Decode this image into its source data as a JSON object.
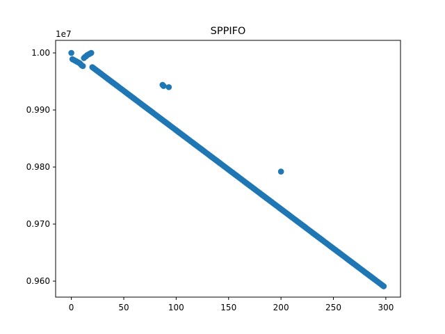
{
  "chart_data": {
    "type": "scatter",
    "title": "SPPIFO",
    "xlabel": "",
    "ylabel": "",
    "y_offset_label": "1e7",
    "xlim": [
      -15,
      314
    ],
    "ylim": [
      0.9572,
      1.0022
    ],
    "x_ticks": [
      0,
      50,
      100,
      150,
      200,
      250,
      300
    ],
    "x_tick_labels": [
      "0",
      "50",
      "100",
      "150",
      "200",
      "250",
      "300"
    ],
    "y_ticks": [
      0.96,
      0.97,
      0.98,
      0.99,
      1.0
    ],
    "y_tick_labels": [
      "0.960",
      "0.970",
      "0.980",
      "0.990",
      "1.00"
    ],
    "grid": false,
    "marker_color": "#1f77b4",
    "series": [
      {
        "main_trend": {
          "x_start": 20,
          "x_end": 298,
          "x_step": 1,
          "y_at_x_start": 0.9975,
          "y_at_x_end": 0.9591
        },
        "initial_cluster": [
          [
            0,
            1.0
          ],
          [
            1,
            0.9989
          ],
          [
            2,
            0.9988
          ],
          [
            3,
            0.9987
          ],
          [
            4,
            0.9986
          ],
          [
            5,
            0.9985
          ],
          [
            6,
            0.9984
          ],
          [
            7,
            0.9983
          ],
          [
            8,
            0.9982
          ],
          [
            9,
            0.998
          ],
          [
            10,
            0.9978
          ],
          [
            11,
            0.9977
          ],
          [
            12,
            0.9991
          ],
          [
            13,
            0.9993
          ],
          [
            14,
            0.9994
          ],
          [
            15,
            0.9996
          ],
          [
            16,
            0.9997
          ],
          [
            17,
            0.9998
          ],
          [
            18,
            0.9999
          ],
          [
            19,
            1.0
          ]
        ],
        "outliers": [
          [
            87,
            0.9944
          ],
          [
            88,
            0.9942
          ],
          [
            93,
            0.994
          ],
          [
            200,
            0.9792
          ]
        ]
      }
    ]
  }
}
